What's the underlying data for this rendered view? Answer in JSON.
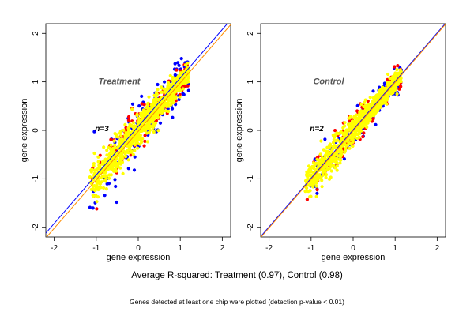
{
  "chart_data": [
    {
      "type": "scatter",
      "title": "Treatment",
      "xlabel": "gene expression",
      "ylabel": "gene expression",
      "xlim": [
        -2.2,
        2.2
      ],
      "ylim": [
        -2.2,
        2.2
      ],
      "xticks": [
        -2,
        -1,
        0,
        1,
        2
      ],
      "yticks": [
        -2,
        -1,
        0,
        1,
        2
      ],
      "annotation": "n=3",
      "point_cloud": {
        "x_range": [
          -1.15,
          1.2
        ],
        "slope": 1.0,
        "spread": 0.09,
        "colors_by_layer": [
          "#0000ff",
          "#ff0000",
          "#ffff00"
        ]
      },
      "reference_lines": [
        {
          "color": "#0000ff",
          "intercept": 0.08,
          "slope": 1.0
        },
        {
          "color": "#ff8c00",
          "intercept": -0.02,
          "slope": 1.0
        }
      ]
    },
    {
      "type": "scatter",
      "title": "Control",
      "xlabel": "gene expression",
      "ylabel": "gene expression",
      "xlim": [
        -2.2,
        2.2
      ],
      "ylim": [
        -2.2,
        2.2
      ],
      "xticks": [
        -2,
        -1,
        0,
        1,
        2
      ],
      "yticks": [
        -2,
        -1,
        0,
        1,
        2
      ],
      "annotation": "n=2",
      "point_cloud": {
        "x_range": [
          -1.15,
          1.15
        ],
        "slope": 1.0,
        "spread": 0.08,
        "colors_by_layer": [
          "#0000ff",
          "#ff0000",
          "#ffff00"
        ]
      },
      "reference_lines": [
        {
          "color": "#0000ff",
          "intercept": 0.01,
          "slope": 1.0
        },
        {
          "color": "#ff8c00",
          "intercept": -0.01,
          "slope": 1.0
        }
      ]
    }
  ],
  "captions": {
    "r2": "Average R-squared: Treatment (0.97), Control (0.98)",
    "note": "Genes detected at least one chip were plotted (detection p-value < 0.01)"
  }
}
